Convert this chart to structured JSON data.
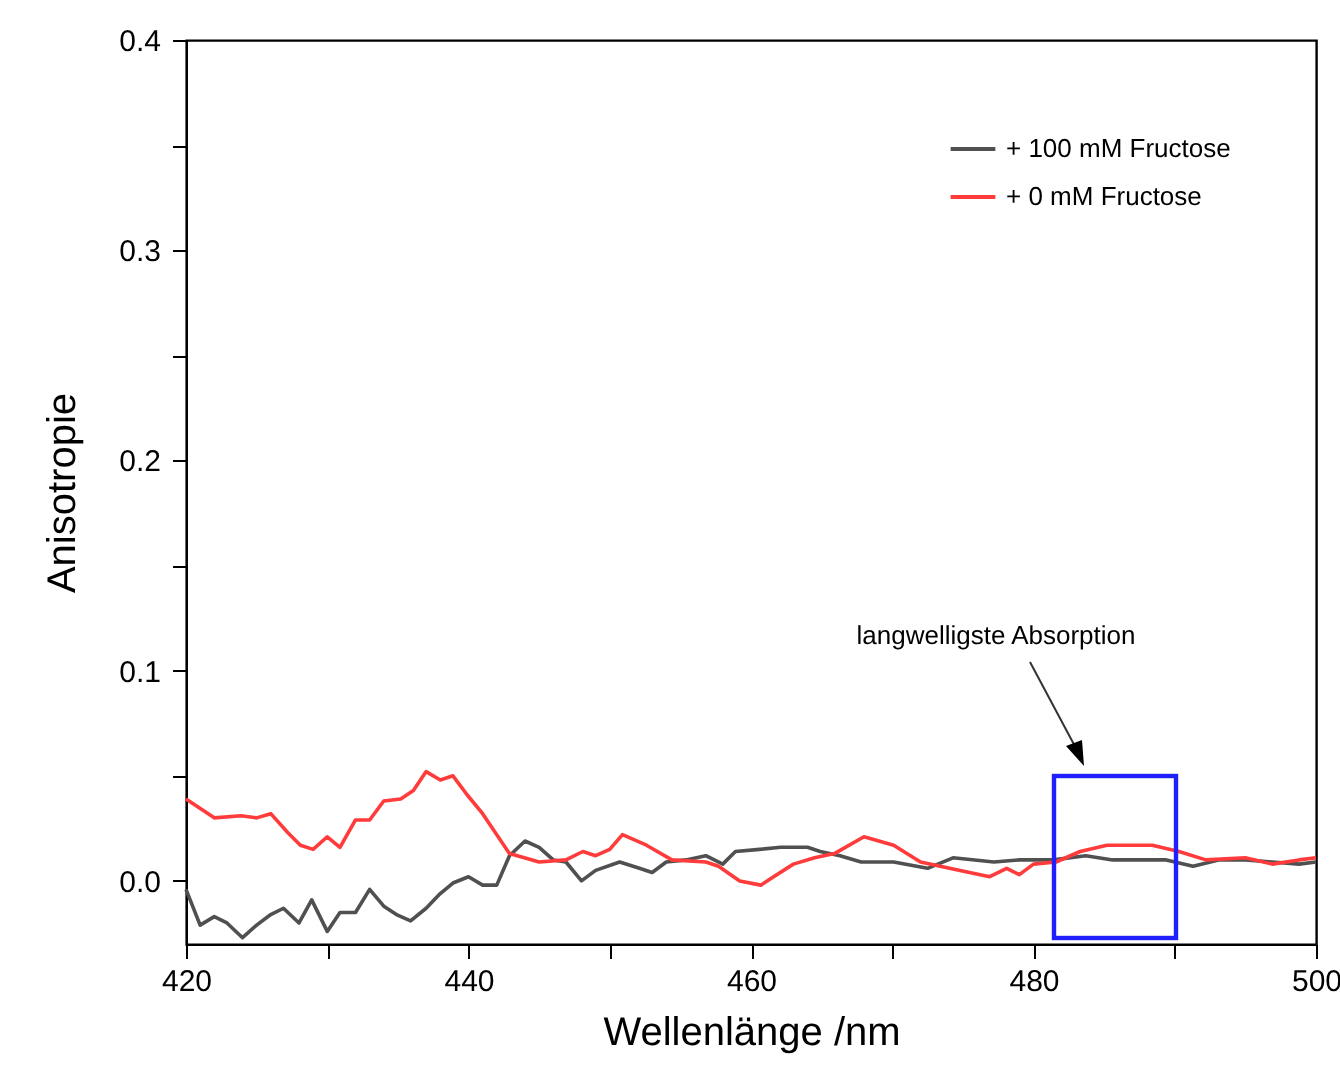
{
  "chart_data": {
    "type": "line",
    "xlabel": "Wellenlänge /nm",
    "ylabel": "Anisotropie",
    "xlim": [
      420,
      500
    ],
    "ylim": [
      -0.03,
      0.4
    ],
    "xticks": [
      420,
      {
        "value": 430,
        "label": null
      },
      440,
      {
        "value": 450,
        "label": null
      },
      460,
      {
        "value": 470,
        "label": null
      },
      480,
      {
        "value": 490,
        "label": null
      },
      500
    ],
    "yticks": [
      {
        "value": 0,
        "label": "0.0"
      },
      {
        "value": 0.05,
        "label": null
      },
      {
        "value": 0.1,
        "label": "0.1"
      },
      {
        "value": 0.15,
        "label": null
      },
      {
        "value": 0.2,
        "label": "0.2"
      },
      {
        "value": 0.25,
        "label": null
      },
      {
        "value": 0.3,
        "label": "0.3"
      },
      {
        "value": 0.35,
        "label": null
      },
      {
        "value": 0.4,
        "label": "0.4"
      }
    ],
    "grid": false,
    "legend": "top right",
    "marker": "none",
    "line_style": "solid",
    "annotations": [
      "langwelligste Absorption"
    ],
    "series": [
      {
        "name": "+ 100 mM Fructose",
        "color": "#505050",
        "x": [
          420,
          421,
          422,
          422.9,
          424,
          425,
          426,
          426.9,
          428,
          428.9,
          430,
          430.9,
          432,
          433,
          434,
          434.9,
          435.9,
          437,
          438,
          438.9,
          440,
          441,
          442,
          442.9,
          444,
          445,
          446,
          446.9,
          448,
          449,
          450.7,
          452.1,
          453,
          454,
          455.4,
          456.8,
          458,
          458.9,
          460.6,
          462.1,
          464,
          464.9,
          466.3,
          467.8,
          470.1,
          472.5,
          474.3,
          477.2,
          479,
          481.4,
          483.7,
          485.6,
          487.5,
          489.4,
          491.3,
          493.1,
          495,
          496.9,
          498.8,
          500
        ],
        "values": [
          -0.004,
          -0.021,
          -0.017,
          -0.02,
          -0.027,
          -0.021,
          -0.016,
          -0.013,
          -0.02,
          -0.009,
          -0.024,
          -0.015,
          -0.015,
          -0.004,
          -0.012,
          -0.016,
          -0.019,
          -0.013,
          -0.006,
          -0.001,
          0.002,
          -0.002,
          -0.002,
          0.012,
          0.019,
          0.016,
          0.01,
          0.009,
          0.0,
          0.005,
          0.009,
          0.006,
          0.004,
          0.009,
          0.01,
          0.012,
          0.008,
          0.014,
          0.015,
          0.016,
          0.016,
          0.014,
          0.012,
          0.009,
          0.009,
          0.006,
          0.011,
          0.009,
          0.01,
          0.01,
          0.012,
          0.01,
          0.01,
          0.01,
          0.007,
          0.01,
          0.01,
          0.009,
          0.008,
          0.009
        ]
      },
      {
        "name": "+ 0 mM Fructose",
        "color": "#ff3b3b",
        "x": [
          420,
          422,
          423.9,
          425,
          426,
          427.2,
          428.1,
          429,
          430,
          430.9,
          432,
          433,
          434,
          435.2,
          436.1,
          437,
          438,
          438.9,
          439.9,
          441,
          442.9,
          445,
          446.9,
          448.1,
          449,
          450,
          450.9,
          452.6,
          454.4,
          456.8,
          457.7,
          459.2,
          460.7,
          461.6,
          463,
          464.5,
          465.9,
          468,
          470.1,
          472,
          474.8,
          476.9,
          478.1,
          479,
          480,
          481.6,
          483.3,
          485.2,
          488.4,
          490.3,
          492.2,
          495,
          496.9,
          498.8,
          500
        ],
        "values": [
          0.039,
          0.03,
          0.031,
          0.03,
          0.032,
          0.023,
          0.017,
          0.015,
          0.021,
          0.016,
          0.029,
          0.029,
          0.038,
          0.039,
          0.043,
          0.052,
          0.048,
          0.05,
          0.041,
          0.032,
          0.013,
          0.009,
          0.01,
          0.014,
          0.012,
          0.015,
          0.022,
          0.017,
          0.01,
          0.009,
          0.007,
          0.0,
          -0.002,
          0.002,
          0.008,
          0.011,
          0.013,
          0.021,
          0.017,
          0.009,
          0.005,
          0.002,
          0.006,
          0.003,
          0.008,
          0.009,
          0.014,
          0.017,
          0.017,
          0.014,
          0.01,
          0.011,
          0.008,
          0.01,
          0.011
        ]
      }
    ]
  }
}
